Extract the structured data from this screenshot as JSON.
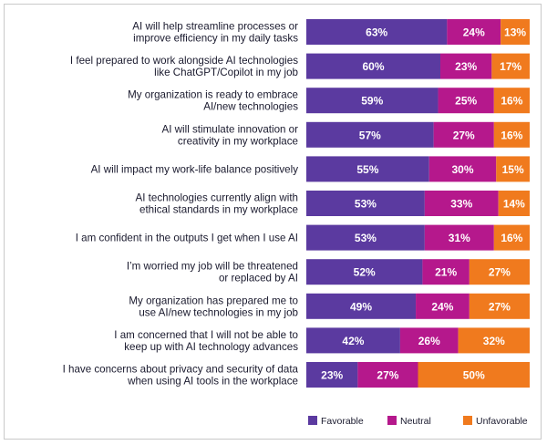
{
  "chart_data": {
    "type": "bar",
    "orientation": "horizontal",
    "stacked": true,
    "title": "",
    "xlabel": "",
    "ylabel": "",
    "xlim": [
      0,
      100
    ],
    "grid": false,
    "legend_position": "bottom-right",
    "value_suffix": "%",
    "categories": [
      [
        "AI will help streamline processes or",
        "improve efficiency in my daily tasks"
      ],
      [
        "I feel prepared to work alongside AI technologies",
        "like ChatGPT/Copilot in my job"
      ],
      [
        "My organization is ready to embrace",
        "AI/new technologies"
      ],
      [
        "AI will stimulate innovation or",
        "creativity in my workplace"
      ],
      [
        "AI will impact my work-life balance positively"
      ],
      [
        "AI technologies currently align with",
        "ethical standards in my workplace"
      ],
      [
        "I am confident in the outputs I get when I use AI"
      ],
      [
        "I’m worried my job will be threatened",
        "or replaced by AI"
      ],
      [
        "My organization has prepared me to",
        "use AI/new technologies in my job"
      ],
      [
        "I am concerned that I will not be able to",
        "keep up with AI technology advances"
      ],
      [
        "I have concerns about privacy and security of data",
        "when using AI tools in the workplace"
      ]
    ],
    "series": [
      {
        "name": "Favorable",
        "color": "#5b3aa0",
        "values": [
          63,
          60,
          59,
          57,
          55,
          53,
          53,
          52,
          49,
          42,
          23
        ]
      },
      {
        "name": "Neutral",
        "color": "#b5188c",
        "values": [
          24,
          23,
          25,
          27,
          30,
          33,
          31,
          21,
          24,
          26,
          27
        ]
      },
      {
        "name": "Unfavorable",
        "color": "#f07a1e",
        "values": [
          13,
          17,
          16,
          16,
          15,
          14,
          16,
          27,
          27,
          32,
          50
        ]
      }
    ]
  }
}
